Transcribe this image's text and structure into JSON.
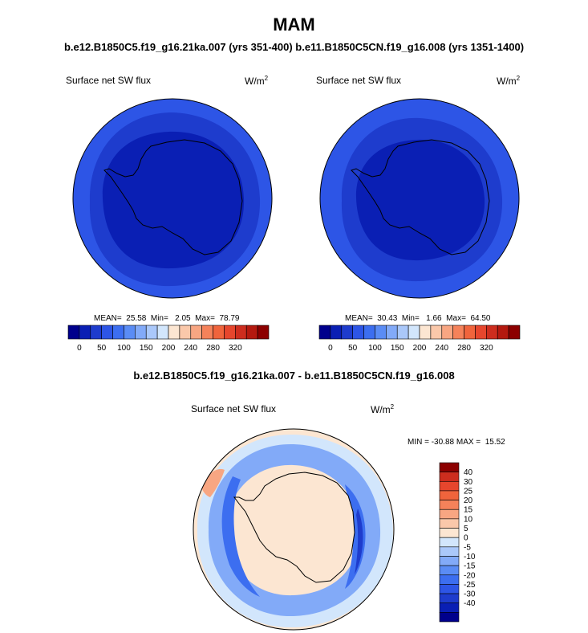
{
  "page": {
    "season": "MAM",
    "subtitle": "b.e12.B1850C5.f19_g16.21ka.007 (yrs 351-400) b.e11.B1850C5CN.f19_g16.008 (yrs 1351-1400)",
    "diff_title": "b.e12.B1850C5.f19_g16.21ka.007 - b.e11.B1850C5CN.f19_g16.008"
  },
  "panels": [
    {
      "label": "Surface net SW flux",
      "units_base": "W/m",
      "units_exp": "2",
      "stats": "MEAN=  25.58  Min=   2.05  Max=  78.79"
    },
    {
      "label": "Surface net SW flux",
      "units_base": "W/m",
      "units_exp": "2",
      "stats": "MEAN=  30.43  Min=   1.66  Max=  64.50"
    },
    {
      "label": "Surface net SW flux",
      "units_base": "W/m",
      "units_exp": "2",
      "stats": "MIN = -30.88 MAX =  15.52"
    }
  ],
  "colorbar_abs": {
    "colors": [
      "#00008c",
      "#0a1fb4",
      "#1e3ccd",
      "#2d55e6",
      "#3c6ef0",
      "#5a8cf5",
      "#82aaf8",
      "#aac8fa",
      "#d2e6fc",
      "#fce6d2",
      "#fac8aa",
      "#f8a682",
      "#f5825a",
      "#f0643c",
      "#e6462d",
      "#cd2d1e",
      "#b4190f",
      "#8c0000"
    ],
    "tick_labels": [
      "0",
      "50",
      "100",
      "150",
      "200",
      "240",
      "280",
      "320"
    ]
  },
  "colorbar_diff": {
    "colors": [
      "#00008c",
      "#0a1fb4",
      "#1e3ccd",
      "#2d55e6",
      "#3c6ef0",
      "#5a8cf5",
      "#82aaf8",
      "#aac8fa",
      "#d2e6fc",
      "#fce6d2",
      "#fac8aa",
      "#f8a682",
      "#f5825a",
      "#f0643c",
      "#e6462d",
      "#cd2d1e",
      "#8c0000"
    ],
    "tick_labels": [
      "40",
      "30",
      "25",
      "20",
      "15",
      "10",
      "5",
      "0",
      "-5",
      "-10",
      "-15",
      "-20",
      "-25",
      "-30",
      "-40"
    ]
  },
  "map_colors": {
    "abs_outer": "#2d55e6",
    "abs_mid": "#1e3ccd",
    "abs_inner": "#0a1fb4",
    "diff_bg": "#fce6d2",
    "diff_light": "#d2e6fc",
    "diff_mid": "#82aaf8",
    "diff_strong": "#3c6ef0",
    "diff_deep": "#1e3ccd",
    "diff_pos": "#f8a682"
  }
}
